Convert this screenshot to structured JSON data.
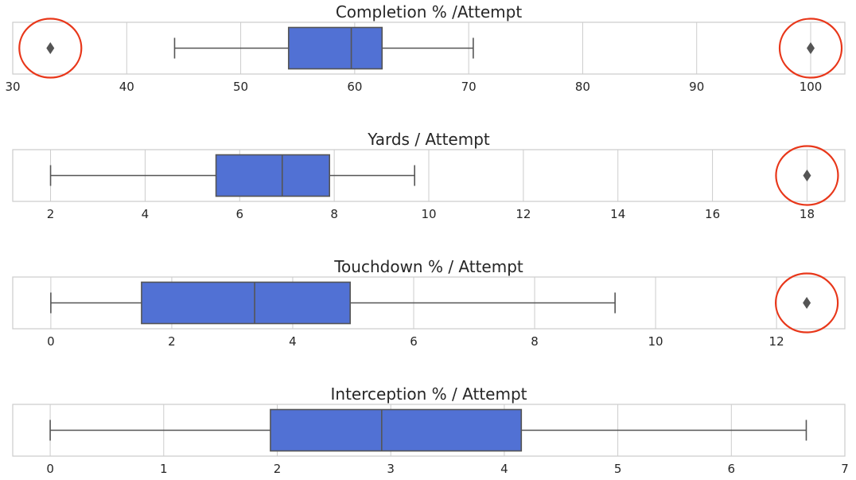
{
  "colors": {
    "box_fill": "#5171d4",
    "line": "#555555",
    "highlight": "#e8371a"
  },
  "chart_data": [
    {
      "type": "boxplot",
      "title": "Completion % /Attempt",
      "xlim": [
        30,
        103
      ],
      "ticks": [
        30,
        40,
        50,
        60,
        70,
        80,
        90,
        100
      ],
      "whisker_low": 44.2,
      "q1": 54.2,
      "median": 59.7,
      "q3": 62.4,
      "whisker_high": 70.4,
      "outliers": [
        33.3,
        100
      ],
      "highlighted_outliers": [
        33.3,
        100
      ],
      "grid": true
    },
    {
      "type": "boxplot",
      "title": "Yards / Attempt",
      "xlim": [
        1.2,
        18.8
      ],
      "ticks": [
        2,
        4,
        6,
        8,
        10,
        12,
        14,
        16,
        18
      ],
      "whisker_low": 2.0,
      "q1": 5.5,
      "median": 6.9,
      "q3": 7.9,
      "whisker_high": 9.7,
      "outliers": [
        18
      ],
      "highlighted_outliers": [
        18
      ],
      "grid": true
    },
    {
      "type": "boxplot",
      "title": "Touchdown % / Attempt",
      "xlim": [
        -0.63,
        13.13
      ],
      "ticks": [
        0,
        2,
        4,
        6,
        8,
        10,
        12
      ],
      "whisker_low": 0.0,
      "q1": 1.5,
      "median": 3.37,
      "q3": 4.95,
      "whisker_high": 9.33,
      "outliers": [
        12.5
      ],
      "highlighted_outliers": [
        12.5
      ],
      "grid": true
    },
    {
      "type": "boxplot",
      "title": "Interception % / Attempt",
      "xlim": [
        -0.33,
        7.0
      ],
      "ticks": [
        0,
        1,
        2,
        3,
        4,
        5,
        6,
        7
      ],
      "whisker_low": 0.0,
      "q1": 1.94,
      "median": 2.92,
      "q3": 4.15,
      "whisker_high": 6.66,
      "outliers": [],
      "highlighted_outliers": [],
      "grid": true
    }
  ]
}
